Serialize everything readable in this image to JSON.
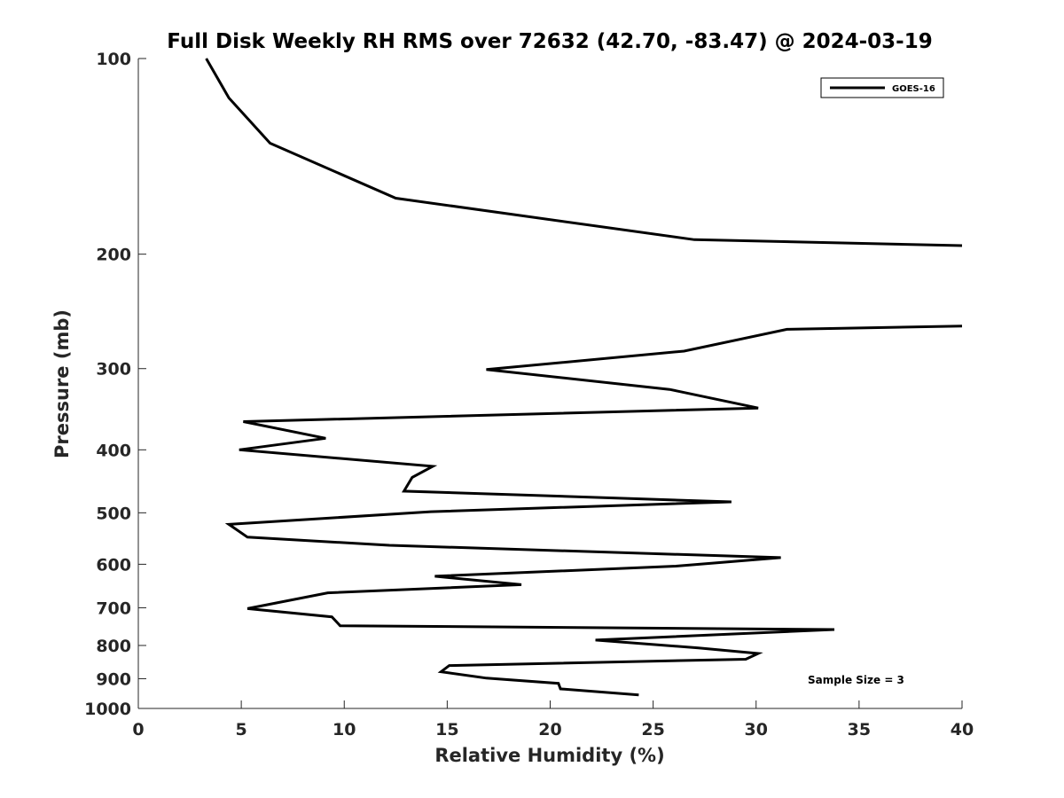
{
  "chart_data": {
    "type": "line",
    "title": "Full Disk Weekly RH RMS over 72632 (42.70, -83.47) @ 2024-03-19",
    "xlabel": "Relative Humidity (%)",
    "ylabel": "Pressure (mb)",
    "xlim": [
      0,
      40
    ],
    "ylim": [
      100,
      1000
    ],
    "y_scale": "log",
    "y_reversed": true,
    "grid": false,
    "legend_position": "top-right",
    "x_ticks": [
      "0",
      "5",
      "10",
      "15",
      "20",
      "25",
      "30",
      "35",
      "40"
    ],
    "y_ticks": [
      "100",
      "200",
      "300",
      "400",
      "500",
      "600",
      "700",
      "800",
      "900",
      "1000"
    ],
    "series": [
      {
        "name": "GOES-16",
        "color": "#000000",
        "points": [
          [
            3.3,
            100
          ],
          [
            4.4,
            115
          ],
          [
            6.4,
            135
          ],
          [
            12.5,
            164
          ],
          [
            27.0,
            190
          ],
          [
            40.0,
            194
          ],
          [
            null,
            null
          ],
          [
            40.0,
            258
          ],
          [
            31.5,
            261
          ],
          [
            26.5,
            282
          ],
          [
            16.9,
            301
          ],
          [
            25.8,
            323
          ],
          [
            30.1,
            345
          ],
          [
            5.1,
            362
          ],
          [
            9.1,
            384
          ],
          [
            4.9,
            400
          ],
          [
            14.3,
            424
          ],
          [
            13.3,
            441
          ],
          [
            12.9,
            463
          ],
          [
            28.8,
            481
          ],
          [
            14.2,
            498
          ],
          [
            4.4,
            521
          ],
          [
            5.3,
            545
          ],
          [
            12.2,
            561
          ],
          [
            31.2,
            586
          ],
          [
            26.1,
            604
          ],
          [
            14.4,
            626
          ],
          [
            18.6,
            645
          ],
          [
            9.2,
            664
          ],
          [
            5.3,
            702
          ],
          [
            9.4,
            723
          ],
          [
            9.8,
            746
          ],
          [
            33.8,
            756
          ],
          [
            22.2,
            785
          ],
          [
            27.2,
            807
          ],
          [
            30.1,
            823
          ],
          [
            29.5,
            840
          ],
          [
            15.1,
            859
          ],
          [
            14.7,
            878
          ],
          [
            16.9,
            898
          ],
          [
            20.4,
            915
          ],
          [
            20.5,
            933
          ],
          [
            24.3,
            953
          ]
        ]
      }
    ],
    "annotations": [
      "Sample Size = 3"
    ]
  }
}
